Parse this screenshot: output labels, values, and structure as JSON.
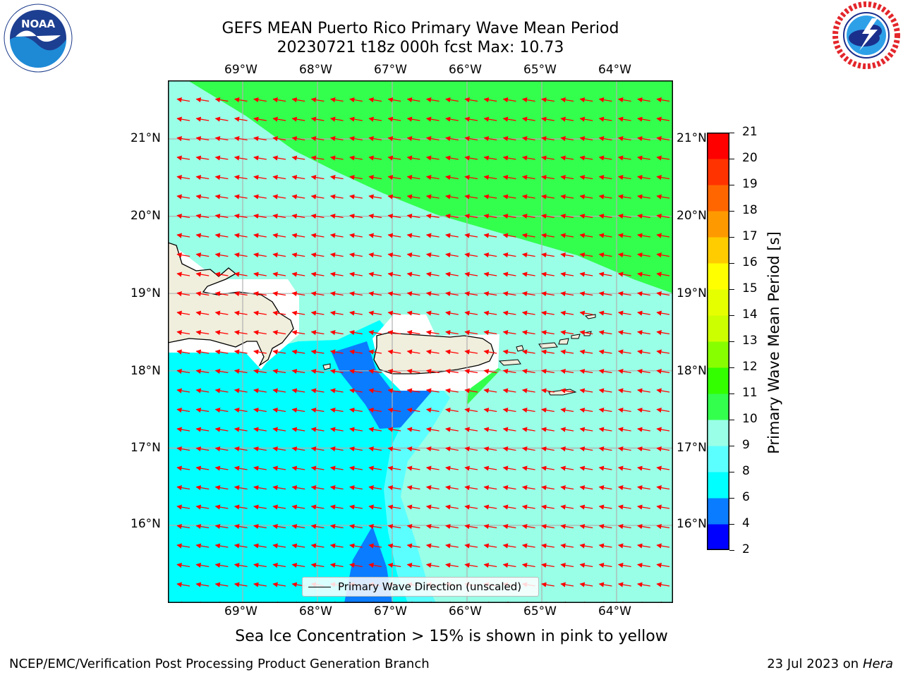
{
  "header": {
    "title_line1": "GEFS MEAN Puerto Rico Primary Wave Mean Period",
    "title_line2": "20230721 t18z 000h fcst   Max: 10.73"
  },
  "logos": {
    "left": "NOAA",
    "left_ring": "NATIONAL OCEANIC AND ATMOSPHERIC ADMINISTRATION · U.S. DEPARTMENT OF COMMERCE",
    "right_ring": "NATIONAL WEATHER SERVICE"
  },
  "map": {
    "lon_labels": [
      "69°W",
      "68°W",
      "67°W",
      "66°W",
      "65°W",
      "64°W"
    ],
    "lat_labels": [
      "21°N",
      "20°N",
      "19°N",
      "18°N",
      "17°N",
      "16°N"
    ],
    "legend_label": "Primary Wave Direction (unscaled)",
    "land_color": "#f0eedc",
    "arrow_color": "#ff0000",
    "wave_direction": "toward west-northwest"
  },
  "colorbar": {
    "label": "Primary Wave Mean Period [s]",
    "levels": [
      2,
      4,
      6,
      8,
      9,
      10,
      11,
      12,
      13,
      14,
      15,
      16,
      17,
      18,
      19,
      20,
      21
    ],
    "colors": [
      "#0000ff",
      "#0a7cff",
      "#00ffff",
      "#5cffff",
      "#99ffe6",
      "#33ff4d",
      "#33ff00",
      "#88ff00",
      "#ccff00",
      "#e6ff00",
      "#ffff00",
      "#ffcc00",
      "#ff9900",
      "#ff6600",
      "#ff3300",
      "#ff0000"
    ]
  },
  "note": "Sea Ice Concentration > 15% is shown in pink to yellow",
  "footer": {
    "left": "NCEP/EMC/Verification Post Processing Product Generation Branch",
    "right_date": "23 Jul 2023 on ",
    "right_host": "Hera"
  }
}
